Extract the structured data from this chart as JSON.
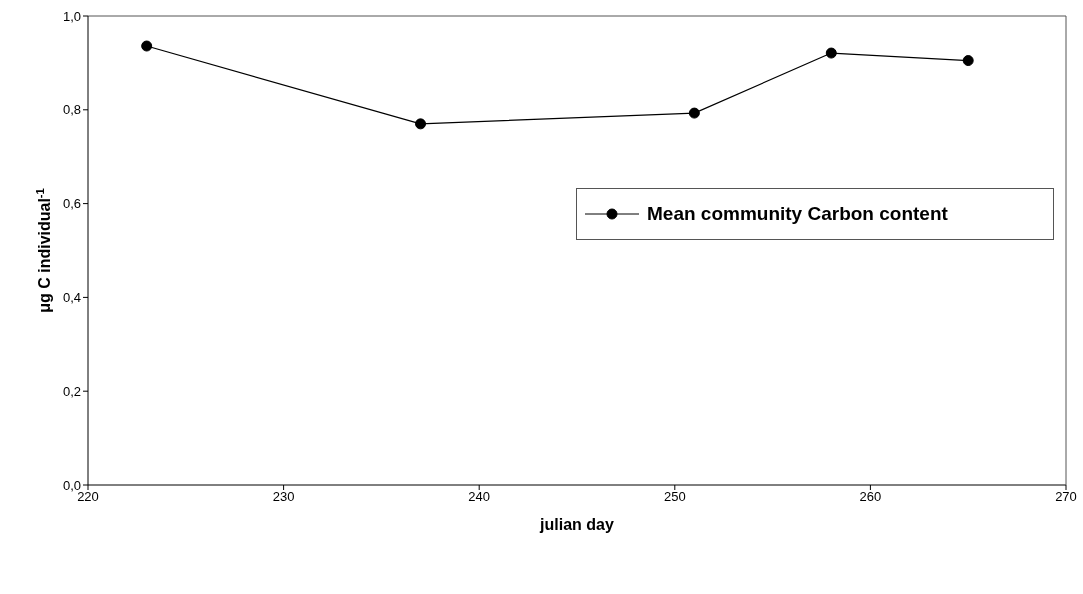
{
  "chart_data": {
    "type": "line",
    "xlabel": "julian day",
    "ylabel": "μg C individual$^{-1}$",
    "x": [
      223,
      237,
      251,
      258,
      265
    ],
    "series": [
      {
        "name": "Mean community Carbon content",
        "color": "#000000",
        "values": [
          0.936,
          0.77,
          0.793,
          0.921,
          0.905
        ]
      }
    ],
    "xlim": [
      220,
      270
    ],
    "xticks": [
      220,
      230,
      240,
      250,
      260,
      270
    ],
    "ylim": [
      0,
      1
    ],
    "yticks": [
      {
        "value": 0,
        "label": "0,0"
      },
      {
        "value": 0.2,
        "label": "0,2"
      },
      {
        "value": 0.4,
        "label": "0,4"
      },
      {
        "value": 0.6,
        "label": "0,6"
      },
      {
        "value": 0.8,
        "label": "0,8"
      },
      {
        "value": 1,
        "label": "1,0"
      }
    ],
    "legend": "right",
    "marker": "circle",
    "line_style": "solid",
    "grid": false
  }
}
